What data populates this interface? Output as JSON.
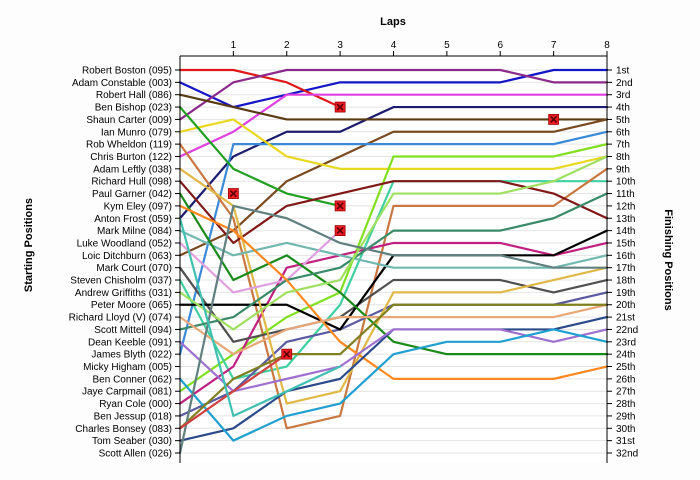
{
  "chart_data": {
    "type": "line",
    "top_axis_title": "Laps",
    "left_axis_title": "Starting Positions",
    "right_axis_title": "Finishing Positions",
    "laps": [
      0,
      1,
      2,
      3,
      4,
      5,
      6,
      7,
      8
    ],
    "lap_tick_labels": [
      "1",
      "2",
      "3",
      "4",
      "5",
      "6",
      "7",
      "8"
    ],
    "start_labels": [
      "Robert Boston (095)",
      "Adam Constable (003)",
      "Robert Hall (086)",
      "Ben Bishop (023)",
      "Shaun Carter (009)",
      "Ian Munro (079)",
      "Rob Wheldon (119)",
      "Chris Burton (122)",
      "Adam Leftly (038)",
      "Richard Hull (098)",
      "Paul Garner (042)",
      "Kym Eley (097)",
      "Anton Frost (059)",
      "Mark Milne (084)",
      "Luke Woodland (052)",
      "Loic Ditchburn (063)",
      "Mark Court (070)",
      "Steven Chisholm (037)",
      "Andrew Griffiths (031)",
      "Peter Moore (065)",
      "Richard Lloyd (V) (074)",
      "Scott Mittell (094)",
      "Dean Keeble (091)",
      "James Blyth (022)",
      "Micky Higham (005)",
      "Ben Conner (062)",
      "Jaye Carpmail (081)",
      "Ryan Cole (000)",
      "Ben Jessup (018)",
      "Charles Bonsey (083)",
      "Tom Seaber (030)",
      "Scott Allen (026)"
    ],
    "finish_labels": [
      "1st",
      "2nd",
      "3rd",
      "4th",
      "5th",
      "6th",
      "7th",
      "8th",
      "9th",
      "10th",
      "11th",
      "12th",
      "13th",
      "14th",
      "15th",
      "16th",
      "17th",
      "18th",
      "19th",
      "20th",
      "21st",
      "22nd",
      "23rd",
      "24th",
      "25th",
      "26th",
      "27th",
      "28th",
      "29th",
      "30th",
      "31st",
      "32nd"
    ],
    "y_range": [
      1,
      32
    ],
    "x_range": [
      0,
      8
    ],
    "grid": "horizontal",
    "series": [
      {
        "color": "#1515c8",
        "positions": [
          2,
          4,
          3,
          2,
          2,
          2,
          2,
          1,
          1
        ]
      },
      {
        "color": "#1c1c6e",
        "positions": [
          13,
          8,
          6,
          6,
          4,
          4,
          4,
          4,
          4
        ]
      },
      {
        "color": "#e01818",
        "positions": [
          1,
          1,
          2,
          4
        ]
      },
      {
        "color": "#8b2a8b",
        "positions": [
          5,
          2,
          1,
          1,
          1,
          1,
          1,
          2,
          2
        ]
      },
      {
        "color": "#e040e0",
        "positions": [
          8,
          6,
          3,
          3,
          3,
          3,
          3,
          3,
          3
        ]
      },
      {
        "color": "#5a3a10",
        "positions": [
          3,
          4,
          5,
          5,
          5,
          5,
          5,
          5,
          5
        ]
      },
      {
        "color": "#7a4a20",
        "positions": [
          16,
          14,
          10,
          8,
          6,
          6,
          6,
          6,
          5
        ]
      },
      {
        "color": "#3a8ad8",
        "positions": [
          24,
          7,
          7,
          7,
          7,
          7,
          7,
          7,
          6
        ]
      },
      {
        "color": "#e8d820",
        "positions": [
          6,
          5,
          8,
          9,
          9,
          9,
          9,
          9,
          8
        ]
      },
      {
        "color": "#80e020",
        "positions": [
          27,
          24,
          21,
          19,
          8,
          8,
          8,
          8,
          7
        ]
      },
      {
        "color": "#20a020",
        "positions": [
          4,
          9,
          11,
          12
        ]
      },
      {
        "color": "#40d0a0",
        "positions": [
          18,
          26,
          25,
          20,
          10,
          10,
          10,
          10,
          10
        ]
      },
      {
        "color": "#c87840",
        "positions": [
          7,
          13,
          30,
          29,
          12,
          12,
          12,
          12,
          9
        ]
      },
      {
        "color": "#801818",
        "positions": [
          10,
          15,
          12,
          11,
          10,
          10,
          10,
          11,
          13
        ]
      },
      {
        "color": "#5a5aa0",
        "positions": [
          29,
          27,
          23,
          22,
          20,
          20,
          20,
          20,
          19
        ]
      },
      {
        "color": "#c02080",
        "positions": [
          28,
          25,
          17,
          16,
          15,
          15,
          15,
          16,
          15
        ]
      },
      {
        "color": "#505050",
        "positions": [
          17,
          23,
          22,
          21,
          18,
          18,
          18,
          19,
          18
        ]
      },
      {
        "color": "#000000",
        "positions": [
          20,
          20,
          20,
          22,
          16,
          16,
          16,
          16,
          14
        ]
      },
      {
        "color": "#e0b848",
        "positions": [
          9,
          12,
          28,
          27,
          19,
          19,
          19,
          18,
          17
        ]
      },
      {
        "color": "#70b8b0",
        "positions": [
          14,
          16,
          15,
          16,
          17,
          17,
          17,
          17,
          16
        ]
      },
      {
        "color": "#e0a0e0",
        "positions": [
          15,
          19,
          18,
          14
        ]
      },
      {
        "color": "#1a8a1a",
        "positions": [
          11,
          18,
          16,
          19,
          23,
          24,
          24,
          24,
          24
        ]
      },
      {
        "color": "#3a8a6a",
        "positions": [
          22,
          21,
          18,
          17,
          14,
          14,
          14,
          13,
          11
        ]
      },
      {
        "color": "#ff8820",
        "positions": [
          12,
          14,
          18,
          23,
          26,
          26,
          26,
          26,
          25
        ]
      },
      {
        "color": "#2a4a8a",
        "positions": [
          31,
          30,
          27,
          26,
          22,
          22,
          22,
          22,
          21
        ]
      },
      {
        "color": "#a0e060",
        "positions": [
          19,
          22,
          19,
          18,
          11,
          11,
          11,
          10,
          8
        ]
      },
      {
        "color": "#a070d0",
        "positions": [
          23,
          27,
          26,
          25,
          22,
          22,
          22,
          23,
          22
        ]
      },
      {
        "color": "#e8a878",
        "positions": [
          21,
          24,
          22,
          21,
          21,
          21,
          21,
          21,
          20
        ]
      },
      {
        "color": "#20a0d0",
        "positions": [
          26,
          31,
          29,
          28,
          24,
          23,
          23,
          22,
          23
        ]
      },
      {
        "color": "#808020",
        "positions": [
          30,
          26,
          24,
          24,
          20,
          20,
          20,
          20,
          20
        ]
      },
      {
        "color": "#608080",
        "positions": [
          32,
          12,
          13,
          15,
          16,
          16,
          16,
          17,
          17
        ]
      },
      {
        "color": "#d04040",
        "positions": [
          30,
          27,
          24
        ]
      },
      {
        "color": "#40c0b0",
        "positions": [
          13,
          29,
          27,
          25
        ]
      }
    ],
    "retirements": [
      {
        "lap": 3,
        "position": 4
      },
      {
        "lap": 7,
        "position": 5
      },
      {
        "lap": 1,
        "position": 11
      },
      {
        "lap": 3,
        "position": 12
      },
      {
        "lap": 3,
        "position": 14
      },
      {
        "lap": 2,
        "position": 24
      }
    ]
  }
}
